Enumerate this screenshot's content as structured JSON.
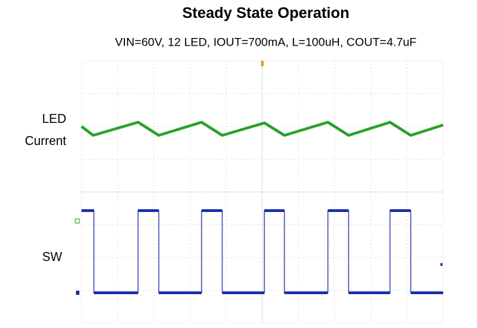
{
  "title": "Steady State Operation",
  "subtitle": "VIN=60V, 12 LED, IOUT=700mA, L=100uH, COUT=4.7uF",
  "labels": [
    [
      "LED",
      "Current"
    ],
    "SW"
  ]
}
